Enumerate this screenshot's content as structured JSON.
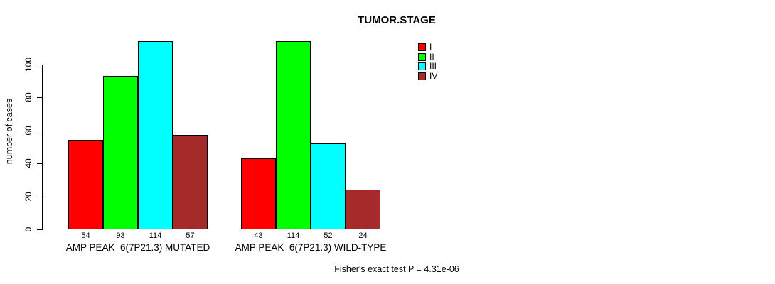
{
  "chart_data": {
    "type": "bar",
    "title": "TUMOR.STAGE",
    "ylabel": "number of cases",
    "xlabel": "",
    "categories": [
      "AMP PEAK  6(7P21.3) MUTATED",
      "AMP PEAK  6(7P21.3) WILD-TYPE"
    ],
    "series": [
      {
        "name": "I",
        "color": "#FF0000",
        "values": [
          54,
          43
        ]
      },
      {
        "name": "II",
        "color": "#00FF00",
        "values": [
          93,
          114
        ]
      },
      {
        "name": "III",
        "color": "#00FFFF",
        "values": [
          114,
          52
        ]
      },
      {
        "name": "IV",
        "color": "#A52A2A",
        "values": [
          57,
          24
        ]
      }
    ],
    "value_labels": [
      [
        "54",
        "93",
        "114",
        "57"
      ],
      [
        "43",
        "114",
        "52",
        "24"
      ]
    ],
    "yticks": [
      "0",
      "20",
      "40",
      "60",
      "80",
      "100"
    ],
    "ylim": [
      0,
      114
    ],
    "grid": false,
    "legend_position": "top-right",
    "bar_border_color": "#000000",
    "axis_color": "#000000",
    "annotation": "Fisher's exact test P = 4.31e-06"
  }
}
